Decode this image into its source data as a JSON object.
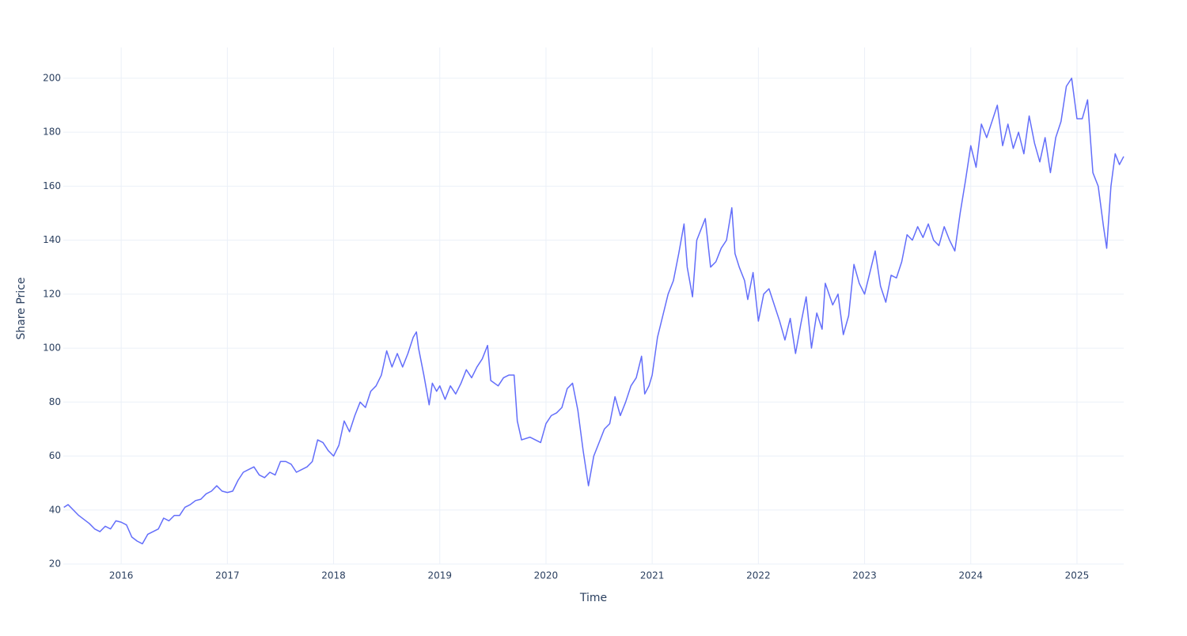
{
  "chart_data": {
    "type": "line",
    "x_label": "Time",
    "y_label": "Share Price",
    "x": [
      2015.46,
      2015.5,
      2015.55,
      2015.6,
      2015.65,
      2015.7,
      2015.75,
      2015.8,
      2015.85,
      2015.9,
      2015.95,
      2016.0,
      2016.05,
      2016.1,
      2016.15,
      2016.2,
      2016.25,
      2016.3,
      2016.35,
      2016.4,
      2016.45,
      2016.5,
      2016.55,
      2016.6,
      2016.65,
      2016.7,
      2016.75,
      2016.8,
      2016.85,
      2016.9,
      2016.95,
      2017.0,
      2017.05,
      2017.1,
      2017.15,
      2017.2,
      2017.25,
      2017.3,
      2017.35,
      2017.4,
      2017.45,
      2017.5,
      2017.55,
      2017.6,
      2017.65,
      2017.7,
      2017.75,
      2017.8,
      2017.85,
      2017.9,
      2017.95,
      2018.0,
      2018.05,
      2018.1,
      2018.15,
      2018.2,
      2018.25,
      2018.3,
      2018.35,
      2018.4,
      2018.45,
      2018.5,
      2018.55,
      2018.6,
      2018.65,
      2018.7,
      2018.75,
      2018.78,
      2018.8,
      2018.85,
      2018.9,
      2018.93,
      2018.97,
      2019.0,
      2019.05,
      2019.1,
      2019.15,
      2019.2,
      2019.25,
      2019.3,
      2019.35,
      2019.4,
      2019.45,
      2019.48,
      2019.55,
      2019.6,
      2019.65,
      2019.7,
      2019.73,
      2019.77,
      2019.85,
      2019.95,
      2020.0,
      2020.05,
      2020.1,
      2020.15,
      2020.2,
      2020.25,
      2020.3,
      2020.35,
      2020.4,
      2020.45,
      2020.5,
      2020.55,
      2020.6,
      2020.65,
      2020.7,
      2020.75,
      2020.8,
      2020.85,
      2020.9,
      2020.93,
      2020.97,
      2021.0,
      2021.05,
      2021.1,
      2021.15,
      2021.2,
      2021.25,
      2021.3,
      2021.33,
      2021.38,
      2021.42,
      2021.5,
      2021.55,
      2021.6,
      2021.65,
      2021.7,
      2021.75,
      2021.78,
      2021.82,
      2021.87,
      2021.9,
      2021.95,
      2022.0,
      2022.05,
      2022.1,
      2022.15,
      2022.2,
      2022.25,
      2022.3,
      2022.35,
      2022.4,
      2022.45,
      2022.5,
      2022.55,
      2022.6,
      2022.63,
      2022.7,
      2022.75,
      2022.8,
      2022.85,
      2022.9,
      2022.95,
      2023.0,
      2023.05,
      2023.1,
      2023.15,
      2023.2,
      2023.25,
      2023.3,
      2023.35,
      2023.4,
      2023.45,
      2023.5,
      2023.55,
      2023.6,
      2023.65,
      2023.7,
      2023.75,
      2023.8,
      2023.85,
      2023.9,
      2023.95,
      2024.0,
      2024.05,
      2024.1,
      2024.15,
      2024.2,
      2024.25,
      2024.3,
      2024.35,
      2024.4,
      2024.45,
      2024.5,
      2024.55,
      2024.6,
      2024.65,
      2024.7,
      2024.75,
      2024.8,
      2024.85,
      2024.9,
      2024.95,
      2025.0,
      2025.05,
      2025.1,
      2025.15,
      2025.2,
      2025.25,
      2025.28,
      2025.32,
      2025.36,
      2025.4,
      2025.44
    ],
    "values": [
      41,
      42,
      40,
      38,
      36.5,
      35,
      33,
      32,
      34,
      33,
      36,
      35.5,
      34.5,
      30,
      28.5,
      27.5,
      31,
      32,
      33,
      37,
      36,
      38,
      38,
      41,
      42,
      43.5,
      44,
      46,
      47,
      49,
      47,
      46.5,
      47,
      51,
      54,
      55,
      56,
      53,
      52,
      54,
      53,
      58,
      58,
      57,
      54,
      55,
      56,
      58,
      66,
      65,
      62,
      60,
      64,
      73,
      69,
      75,
      80,
      78,
      84,
      86,
      90,
      99,
      93,
      98,
      93,
      98,
      104,
      106,
      100,
      90,
      79,
      87,
      84,
      86,
      81,
      86,
      83,
      87,
      92,
      89,
      93,
      96,
      101,
      88,
      86,
      89,
      90,
      90,
      73,
      66,
      67,
      65,
      72,
      75,
      76,
      78,
      85,
      87,
      77,
      62,
      49,
      60,
      65,
      70,
      72,
      82,
      75,
      80,
      86,
      89,
      97,
      83,
      86,
      90,
      104,
      112,
      120,
      125,
      135,
      146,
      130,
      119,
      140,
      148,
      130,
      132,
      137,
      140,
      152,
      135,
      130,
      125,
      118,
      128,
      110,
      120,
      122,
      116,
      110,
      103,
      111,
      98,
      109,
      119,
      100,
      113,
      107,
      124,
      116,
      120,
      105,
      112,
      131,
      124,
      120,
      128,
      136,
      123,
      117,
      127,
      126,
      132,
      142,
      140,
      145,
      141,
      146,
      140,
      138,
      145,
      140,
      136,
      150,
      162,
      175,
      167,
      183,
      178,
      184,
      190,
      175,
      183,
      174,
      180,
      172,
      186,
      176,
      169,
      178,
      165,
      178,
      184,
      197,
      200,
      185,
      185,
      192,
      165,
      160,
      145,
      137,
      160,
      172,
      168,
      171
    ],
    "color": "#636efa",
    "xlim": [
      2015.455,
      2025.44
    ],
    "xticks": [
      2016,
      2017,
      2018,
      2019,
      2020,
      2021,
      2022,
      2023,
      2024,
      2025
    ],
    "ylim": [
      20,
      211.4
    ],
    "yticks": [
      20,
      40,
      60,
      80,
      100,
      120,
      140,
      160,
      180,
      200
    ],
    "grid": true
  }
}
